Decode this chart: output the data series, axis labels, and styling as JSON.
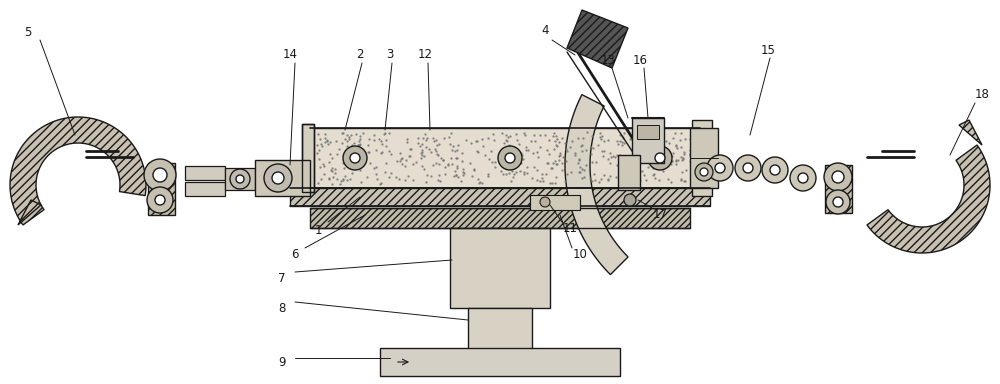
{
  "bg_color": "#ffffff",
  "line_color": "#1a1a1a",
  "figsize": [
    10.0,
    3.84
  ],
  "dpi": 100,
  "xlim": [
    0,
    1000
  ],
  "ylim": [
    0,
    384
  ]
}
